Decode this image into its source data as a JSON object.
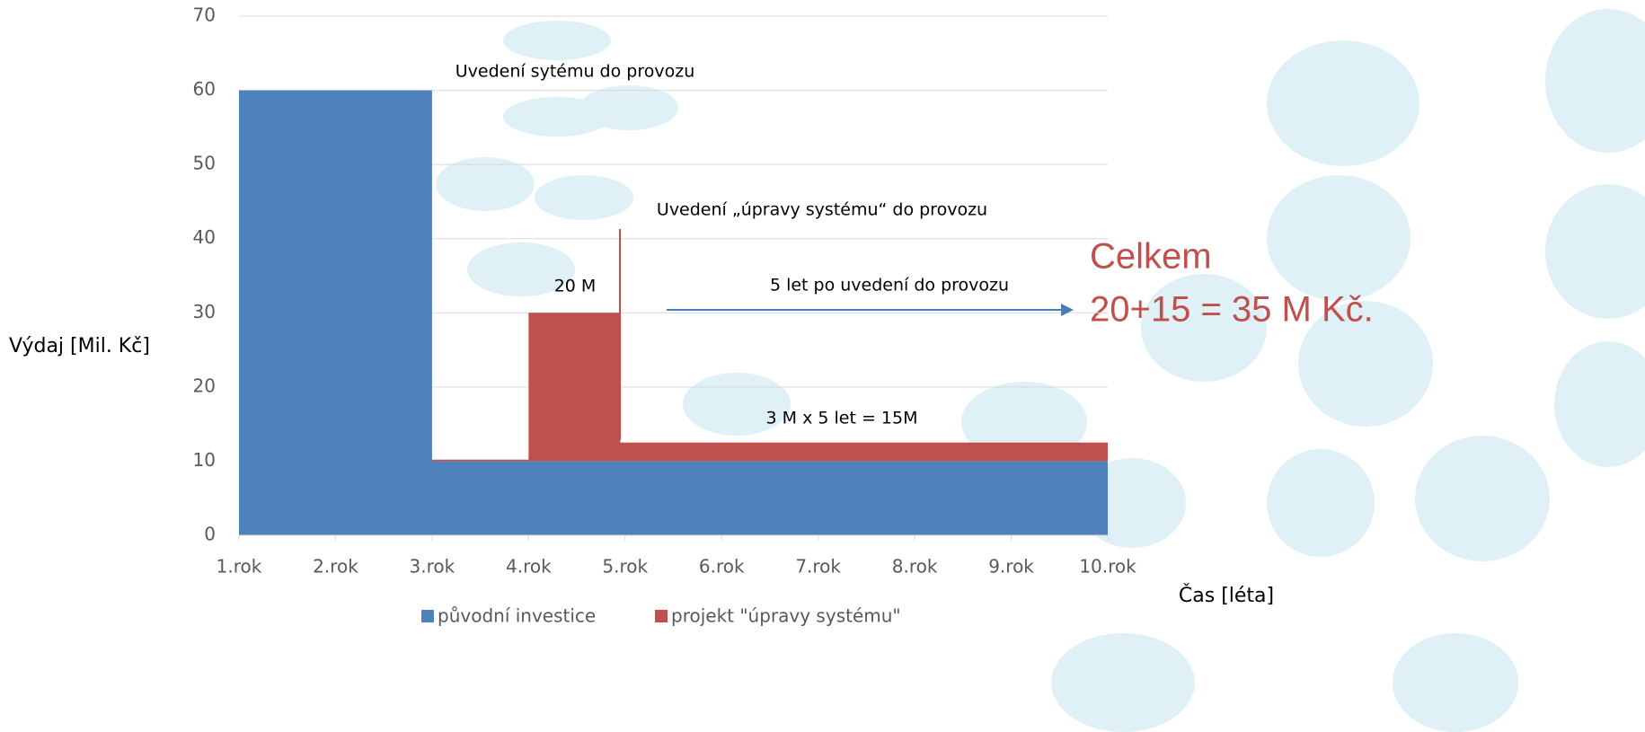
{
  "chart_data": {
    "type": "area",
    "stacked": true,
    "x": [
      1,
      3,
      3,
      4,
      4,
      4.95,
      4.95,
      10
    ],
    "xlim": [
      1,
      10
    ],
    "xticks": [
      {
        "value": 1,
        "label": "1.rok"
      },
      {
        "value": 2,
        "label": "2.rok"
      },
      {
        "value": 3,
        "label": "3.rok"
      },
      {
        "value": 4,
        "label": "4.rok"
      },
      {
        "value": 5,
        "label": "5.rok"
      },
      {
        "value": 6,
        "label": "6.rok"
      },
      {
        "value": 7,
        "label": "7.rok"
      },
      {
        "value": 8,
        "label": "8.rok"
      },
      {
        "value": 9,
        "label": "9.rok"
      },
      {
        "value": 10,
        "label": "10.rok"
      }
    ],
    "ylim": [
      0,
      70
    ],
    "yticks": [
      0,
      10,
      20,
      30,
      40,
      50,
      60,
      70
    ],
    "grid": true,
    "y_label": "Výdaj [Mil. Kč]",
    "x_label": "Čas [léta]",
    "series": [
      {
        "name": "původní investice",
        "color": "#4f81bd",
        "values": [
          60,
          60,
          10,
          10,
          10,
          10,
          10,
          10
        ]
      },
      {
        "name": "projekt \"úpravy systému\"",
        "color": "#c0504d",
        "values": [
          0,
          0,
          0.2,
          0.2,
          20,
          20,
          2.5,
          2.5
        ]
      }
    ],
    "annotations": [
      "Uvedení sytému do provozu",
      "Uvedení „úpravy systému“ do provozu",
      "20 M",
      "5 let po uvedení do provozu",
      "3 M x 5 let = 15M",
      "Celkem",
      "20+15 = 35 M Kč."
    ],
    "legend": "bottom"
  }
}
